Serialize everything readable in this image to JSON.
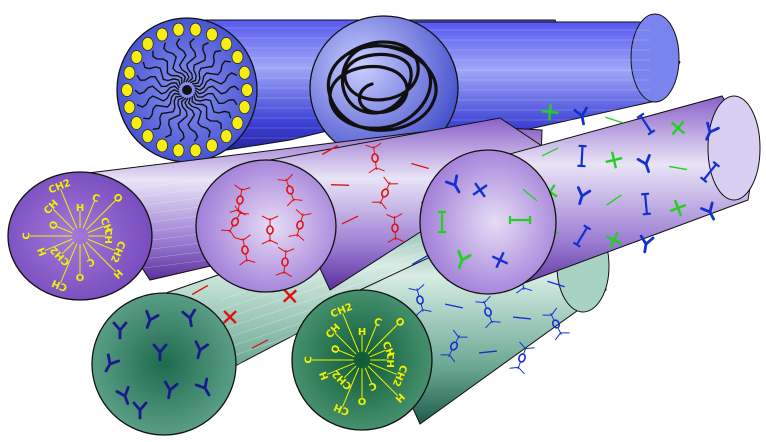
{
  "diagram": {
    "colors": {
      "blue_fiber": "#3a3fd8",
      "purple_fiber": "#7a52c0",
      "green_fiber": "#3f8f79",
      "lipid_head": "#f5ee10",
      "red_motif": "#e01010",
      "blue_motif": "#1530d0",
      "green_motif": "#22d020",
      "yellow_motif": "#f2f200",
      "navy_motif": "#1a1a8c"
    },
    "fibers": [
      {
        "name": "micelle-fiber",
        "color": "blue",
        "face": "micelle"
      },
      {
        "name": "coil-fiber",
        "color": "blue",
        "face": "random-coil"
      },
      {
        "name": "yellow-chain-fiber",
        "color": "purple",
        "face": "yellow-chain-labels"
      },
      {
        "name": "red-motif-fiber",
        "color": "purple",
        "face": "red-motifs"
      },
      {
        "name": "blue-green-fiber",
        "color": "purple",
        "face": "blue-green-motifs"
      },
      {
        "name": "y-motif-fiber",
        "color": "green",
        "face": "navy-y-motifs"
      },
      {
        "name": "yellow-chain-green-fiber",
        "color": "green",
        "face": "yellow-chain-labels"
      }
    ],
    "chain_labels": [
      "CH",
      "CH2",
      "H",
      "C",
      "O"
    ]
  }
}
